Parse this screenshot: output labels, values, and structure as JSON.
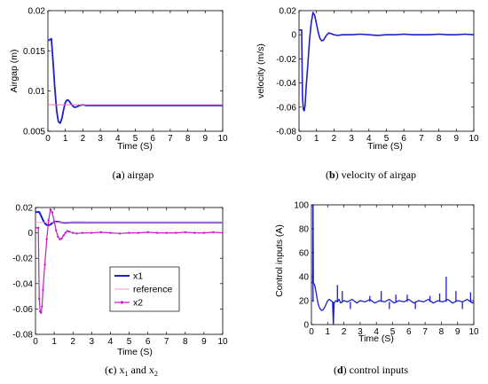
{
  "chart_data": [
    {
      "type": "line",
      "panel_label": "a",
      "caption": "airgap",
      "xlabel": "Time (S)",
      "ylabel": "Airgap (m)",
      "xlim": [
        0,
        10
      ],
      "ylim": [
        0.005,
        0.02
      ],
      "xticks": [
        "0",
        "1",
        "2",
        "3",
        "4",
        "5",
        "6",
        "7",
        "8",
        "9",
        "10"
      ],
      "yticks": [
        "0.005",
        "0.01",
        "0.015",
        "0.02"
      ],
      "grid": false,
      "series": [
        {
          "color": "#1f1fc8",
          "width": 1.8,
          "x": [
            0,
            0.05,
            0.2,
            0.3,
            0.4,
            0.5,
            0.6,
            0.7,
            0.8,
            0.9,
            1.0,
            1.1,
            1.2,
            1.3,
            1.4,
            1.5,
            1.6,
            1.7,
            1.8,
            2.0,
            2.2,
            2.5,
            3.0,
            4,
            5,
            6,
            7,
            8,
            9,
            10
          ],
          "y": [
            0.0163,
            0.0163,
            0.0165,
            0.0135,
            0.0102,
            0.0075,
            0.0062,
            0.006,
            0.0066,
            0.0077,
            0.0086,
            0.0089,
            0.0088,
            0.0085,
            0.0082,
            0.008,
            0.008,
            0.0081,
            0.0082,
            0.0083,
            0.0082,
            0.0082,
            0.0082,
            0.0082,
            0.0082,
            0.0082,
            0.0082,
            0.0082,
            0.0082,
            0.0082
          ]
        },
        {
          "color": "#e66fb9",
          "width": 1,
          "x": [
            0,
            10
          ],
          "y": [
            0.0083,
            0.0083
          ]
        }
      ]
    },
    {
      "type": "line",
      "panel_label": "b",
      "caption": "velocity of airgap",
      "xlabel": "Time (S)",
      "ylabel": "velocity (m/s)",
      "xlim": [
        0,
        10
      ],
      "ylim": [
        -0.08,
        0.02
      ],
      "xticks": [
        "0",
        "1",
        "2",
        "3",
        "4",
        "5",
        "6",
        "7",
        "8",
        "9",
        "10"
      ],
      "yticks": [
        "-0.08",
        "-0.06",
        "-0.04",
        "-0.02",
        "0",
        "0.02"
      ],
      "grid": false,
      "series": [
        {
          "color": "#1f1fc8",
          "width": 1.6,
          "x": [
            0,
            0.15,
            0.2,
            0.25,
            0.3,
            0.35,
            0.4,
            0.5,
            0.6,
            0.7,
            0.8,
            0.9,
            1.0,
            1.1,
            1.2,
            1.3,
            1.4,
            1.5,
            1.6,
            1.7,
            1.8,
            2.0,
            2.2,
            2.5,
            3,
            3.5,
            4,
            4.5,
            5,
            5.5,
            6,
            6.5,
            7,
            7.5,
            8,
            8.5,
            9,
            9.5,
            10
          ],
          "y": [
            0.004,
            0.004,
            -0.052,
            -0.062,
            -0.063,
            -0.058,
            -0.045,
            -0.025,
            -0.005,
            0.01,
            0.0185,
            0.016,
            0.009,
            0.002,
            -0.003,
            -0.005,
            -0.0045,
            -0.002,
            0.0,
            0.0015,
            0.001,
            0.0,
            -0.0005,
            0.0,
            0.0,
            0.0005,
            0.0,
            -0.0005,
            0.0,
            0.0,
            0.0005,
            0.0,
            0.0,
            0.0,
            0.0005,
            0.0,
            0.0,
            0.0005,
            0.0
          ]
        }
      ]
    },
    {
      "type": "line",
      "panel_label": "c",
      "caption_main": "x",
      "caption_sub1": "1",
      "caption_and": " and x",
      "caption_sub2": "2",
      "xlabel": "Time (S)",
      "ylabel": "",
      "xlim": [
        0,
        10
      ],
      "ylim": [
        -0.08,
        0.02
      ],
      "xticks": [
        "0",
        "1",
        "2",
        "3",
        "4",
        "5",
        "6",
        "7",
        "8",
        "9",
        "10"
      ],
      "yticks": [
        "-0.08",
        "-0.06",
        "-0.04",
        "-0.02",
        "0",
        "0.02"
      ],
      "grid": false,
      "legend": "lower-right",
      "series": [
        {
          "name": "x1",
          "color": "#1f1fc8",
          "width": 2,
          "marker": "none",
          "x": [
            0,
            0.2,
            0.3,
            0.4,
            0.5,
            0.6,
            0.7,
            0.8,
            0.9,
            1.0,
            1.1,
            1.2,
            1.4,
            1.6,
            2.0,
            3,
            4,
            5,
            6,
            7,
            8,
            9,
            10
          ],
          "y": [
            0.0163,
            0.0165,
            0.0135,
            0.0102,
            0.0075,
            0.0062,
            0.006,
            0.0066,
            0.0077,
            0.0086,
            0.0089,
            0.0088,
            0.0082,
            0.008,
            0.0083,
            0.0082,
            0.0082,
            0.0082,
            0.0082,
            0.0082,
            0.0082,
            0.0082,
            0.0082
          ]
        },
        {
          "name": "reference",
          "color": "#f29ad0",
          "width": 1,
          "marker": "none",
          "x": [
            0,
            10
          ],
          "y": [
            0.0083,
            0.0083
          ]
        },
        {
          "name": "x2",
          "color": "#c020c0",
          "width": 1.2,
          "marker": "dot",
          "x": [
            0,
            0.15,
            0.2,
            0.25,
            0.3,
            0.35,
            0.4,
            0.5,
            0.6,
            0.7,
            0.8,
            0.9,
            1.0,
            1.1,
            1.2,
            1.3,
            1.4,
            1.5,
            1.6,
            1.7,
            1.8,
            2.0,
            2.2,
            2.5,
            3,
            3.5,
            4,
            4.5,
            5,
            5.5,
            6,
            6.5,
            7,
            7.5,
            8,
            8.5,
            9,
            9.5,
            10
          ],
          "y": [
            0.004,
            0.004,
            -0.052,
            -0.062,
            -0.063,
            -0.058,
            -0.045,
            -0.025,
            -0.005,
            0.01,
            0.0185,
            0.016,
            0.009,
            0.002,
            -0.003,
            -0.005,
            -0.0045,
            -0.002,
            0.0,
            0.0015,
            0.001,
            0.0,
            -0.0005,
            0.0,
            0.0,
            0.0005,
            0.0,
            -0.0005,
            0.0,
            0.0,
            0.0005,
            0.0,
            0.0,
            0.0,
            0.0005,
            0.0,
            0.0,
            0.0005,
            0.0
          ]
        }
      ]
    },
    {
      "type": "line",
      "panel_label": "d",
      "caption": "control inputs",
      "xlabel": "Time (S)",
      "ylabel": "Control inputs (A)",
      "xlim": [
        0,
        10
      ],
      "ylim": [
        0,
        100
      ],
      "xticks": [
        "0",
        "1",
        "2",
        "3",
        "4",
        "5",
        "6",
        "7",
        "8",
        "9",
        "10"
      ],
      "yticks": [
        "0",
        "20",
        "40",
        "60",
        "80",
        "100"
      ],
      "grid": false,
      "series": [
        {
          "color": "#1f1fc8",
          "width": 1.3,
          "x": [
            0,
            0.08,
            0.1,
            0.12,
            0.2,
            0.3,
            0.4,
            0.5,
            0.6,
            0.7,
            0.8,
            0.9,
            1.0,
            1.1,
            1.2,
            1.3,
            1.35,
            1.4,
            1.5,
            1.6,
            1.7,
            1.8,
            2.0,
            2.2,
            2.5,
            2.8,
            3.0,
            3.3,
            3.6,
            3.9,
            4.2,
            4.5,
            4.8,
            5.1,
            5.4,
            5.7,
            6.0,
            6.3,
            6.6,
            6.9,
            7.2,
            7.5,
            7.8,
            8.1,
            8.4,
            8.7,
            9.0,
            9.3,
            9.6,
            9.9,
            10
          ],
          "y": [
            35,
            35,
            100,
            35,
            33,
            26,
            18,
            14,
            12,
            12,
            14,
            17,
            20,
            21,
            20,
            19,
            0,
            18,
            20,
            19,
            21,
            18,
            20,
            19,
            21,
            18,
            20,
            19,
            21,
            18,
            20,
            19,
            21,
            18,
            20,
            19,
            21,
            18,
            20,
            19,
            21,
            18,
            20,
            19,
            21,
            18,
            20,
            19,
            21,
            18,
            19
          ]
        }
      ],
      "spikes": [
        {
          "x": 0.1,
          "y": 100
        },
        {
          "x": 1.35,
          "y": 0
        },
        {
          "x": 1.6,
          "y": 33
        },
        {
          "x": 1.9,
          "y": 28
        },
        {
          "x": 2.4,
          "y": 13
        },
        {
          "x": 3.6,
          "y": 24
        },
        {
          "x": 4.3,
          "y": 28
        },
        {
          "x": 4.8,
          "y": 13
        },
        {
          "x": 5.2,
          "y": 25
        },
        {
          "x": 5.9,
          "y": 25
        },
        {
          "x": 6.4,
          "y": 13
        },
        {
          "x": 7.3,
          "y": 24
        },
        {
          "x": 7.9,
          "y": 26
        },
        {
          "x": 8.3,
          "y": 40
        },
        {
          "x": 8.9,
          "y": 28
        },
        {
          "x": 9.3,
          "y": 13
        },
        {
          "x": 9.8,
          "y": 27
        }
      ]
    }
  ]
}
